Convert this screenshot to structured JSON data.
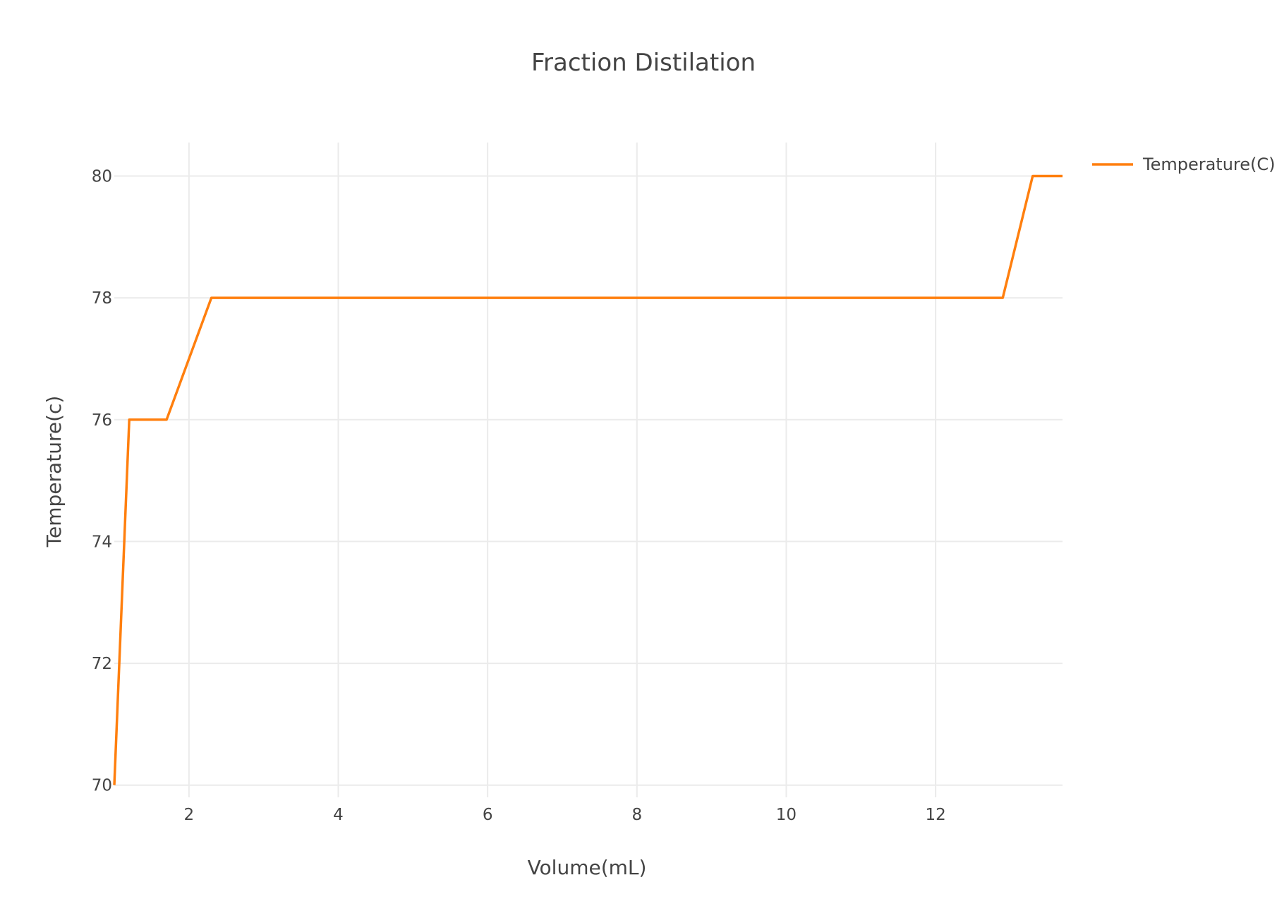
{
  "chart_data": {
    "type": "line",
    "title": "Fraction Distilation",
    "xlabel": "Volume(mL)",
    "ylabel": "Temperature(c)",
    "xlim": [
      1.0,
      13.7
    ],
    "ylim": [
      69.8,
      80.55
    ],
    "xticks": [
      2,
      4,
      6,
      8,
      10,
      12
    ],
    "yticks": [
      70,
      72,
      74,
      76,
      78,
      80
    ],
    "grid": true,
    "legend_position": "top-right",
    "series": [
      {
        "name": "Temperature(C)",
        "color": "#ff7f0e",
        "x": [
          1.0,
          1.2,
          1.7,
          2.3,
          12.9,
          13.3,
          13.7
        ],
        "y": [
          70,
          76,
          76,
          78,
          78,
          80,
          80
        ]
      }
    ]
  }
}
